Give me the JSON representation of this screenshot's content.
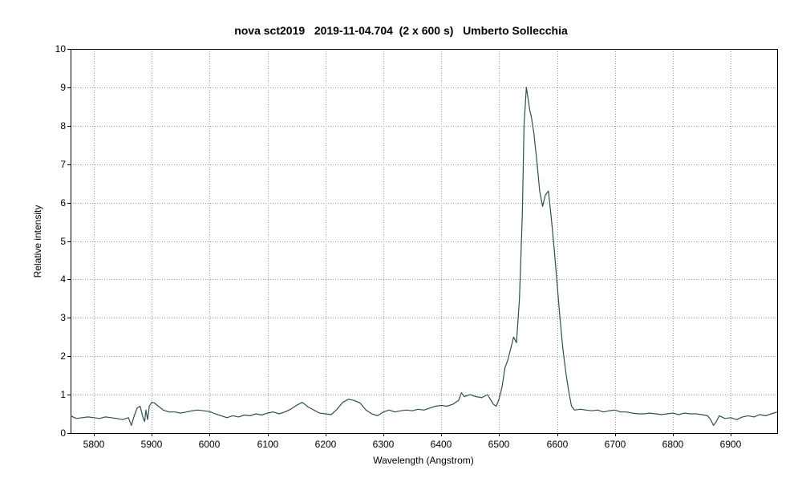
{
  "chart_data": {
    "type": "line",
    "title": "nova sct2019   2019-11-04.704  (2 x 600 s)   Umberto Sollecchia",
    "xlabel": "Wavelength (Angstrom)",
    "ylabel": "Relative intensity",
    "xlim": [
      5760,
      6980
    ],
    "ylim": [
      0,
      10
    ],
    "xticks": [
      5800,
      5900,
      6000,
      6100,
      6200,
      6300,
      6400,
      6500,
      6600,
      6700,
      6800,
      6900
    ],
    "yticks": [
      0,
      1,
      2,
      3,
      4,
      5,
      6,
      7,
      8,
      9,
      10
    ],
    "grid": true,
    "line_color": "#2f4f4f",
    "series": [
      {
        "x": [
          5760,
          5770,
          5780,
          5790,
          5800,
          5810,
          5820,
          5830,
          5840,
          5850,
          5860,
          5865,
          5870,
          5875,
          5880,
          5885,
          5888,
          5890,
          5893,
          5896,
          5900,
          5905,
          5910,
          5920,
          5930,
          5940,
          5950,
          5960,
          5970,
          5980,
          5990,
          6000,
          6010,
          6020,
          6030,
          6040,
          6050,
          6060,
          6070,
          6080,
          6090,
          6100,
          6110,
          6120,
          6130,
          6140,
          6150,
          6160,
          6170,
          6180,
          6190,
          6200,
          6210,
          6220,
          6230,
          6240,
          6250,
          6260,
          6270,
          6280,
          6290,
          6300,
          6310,
          6320,
          6330,
          6340,
          6350,
          6360,
          6370,
          6380,
          6390,
          6400,
          6410,
          6420,
          6430,
          6435,
          6440,
          6450,
          6460,
          6470,
          6480,
          6490,
          6495,
          6500,
          6505,
          6510,
          6515,
          6520,
          6525,
          6530,
          6535,
          6540,
          6543,
          6547,
          6550,
          6553,
          6556,
          6560,
          6565,
          6570,
          6575,
          6580,
          6585,
          6590,
          6595,
          6600,
          6605,
          6610,
          6615,
          6620,
          6625,
          6630,
          6640,
          6650,
          6660,
          6670,
          6680,
          6690,
          6700,
          6710,
          6720,
          6730,
          6740,
          6750,
          6760,
          6770,
          6780,
          6790,
          6800,
          6810,
          6820,
          6830,
          6840,
          6850,
          6860,
          6865,
          6870,
          6875,
          6880,
          6890,
          6900,
          6910,
          6920,
          6930,
          6940,
          6950,
          6960,
          6970,
          6980
        ],
        "y": [
          0.45,
          0.38,
          0.4,
          0.42,
          0.4,
          0.38,
          0.42,
          0.4,
          0.38,
          0.35,
          0.4,
          0.2,
          0.45,
          0.65,
          0.7,
          0.4,
          0.3,
          0.6,
          0.35,
          0.7,
          0.8,
          0.78,
          0.72,
          0.6,
          0.55,
          0.55,
          0.52,
          0.55,
          0.58,
          0.6,
          0.58,
          0.56,
          0.5,
          0.45,
          0.4,
          0.45,
          0.42,
          0.47,
          0.45,
          0.5,
          0.47,
          0.52,
          0.55,
          0.5,
          0.55,
          0.62,
          0.72,
          0.8,
          0.68,
          0.6,
          0.52,
          0.5,
          0.48,
          0.62,
          0.8,
          0.88,
          0.85,
          0.78,
          0.6,
          0.5,
          0.45,
          0.55,
          0.6,
          0.55,
          0.58,
          0.6,
          0.58,
          0.62,
          0.6,
          0.65,
          0.7,
          0.72,
          0.7,
          0.75,
          0.85,
          1.05,
          0.95,
          1.0,
          0.95,
          0.92,
          1.0,
          0.75,
          0.7,
          0.9,
          1.2,
          1.7,
          1.9,
          2.2,
          2.5,
          2.35,
          3.5,
          5.7,
          8.0,
          9.0,
          8.7,
          8.4,
          8.2,
          7.8,
          7.1,
          6.3,
          5.9,
          6.2,
          6.3,
          5.6,
          4.8,
          3.9,
          3.0,
          2.2,
          1.6,
          1.1,
          0.7,
          0.6,
          0.62,
          0.6,
          0.58,
          0.6,
          0.55,
          0.58,
          0.6,
          0.55,
          0.55,
          0.52,
          0.5,
          0.5,
          0.52,
          0.5,
          0.48,
          0.5,
          0.52,
          0.48,
          0.52,
          0.5,
          0.5,
          0.48,
          0.45,
          0.35,
          0.2,
          0.3,
          0.45,
          0.38,
          0.4,
          0.35,
          0.42,
          0.45,
          0.42,
          0.48,
          0.45,
          0.5,
          0.55
        ]
      }
    ]
  }
}
